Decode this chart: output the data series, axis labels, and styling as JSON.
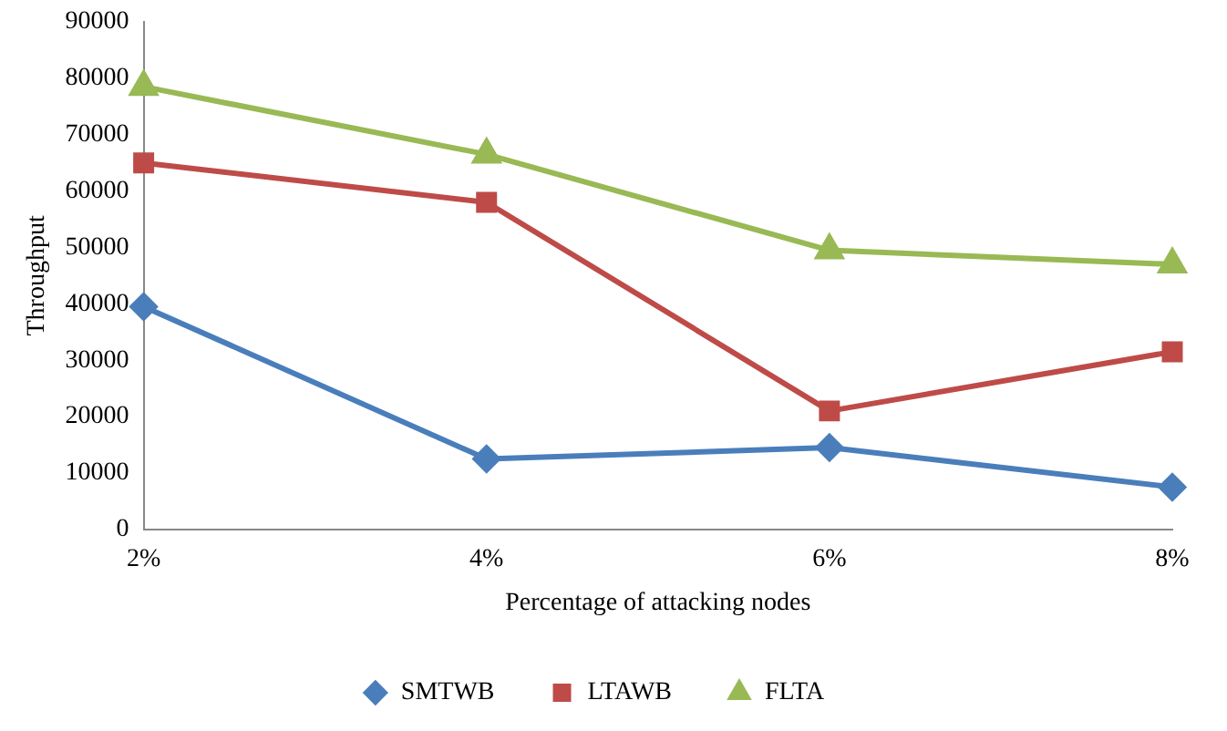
{
  "chart_data": {
    "type": "line",
    "xlabel": "Percentage of attacking nodes",
    "ylabel": "Throughput",
    "categories": [
      "2%",
      "4%",
      "6%",
      "8%"
    ],
    "series": [
      {
        "name": "SMTWB",
        "color": "#4a7ebb",
        "marker": "diamond",
        "values": [
          39500,
          12500,
          14500,
          7500
        ]
      },
      {
        "name": "LTAWB",
        "color": "#be4b48",
        "marker": "square",
        "values": [
          65000,
          58000,
          21000,
          31500
        ]
      },
      {
        "name": "FLTA",
        "color": "#98b954",
        "marker": "triangle",
        "values": [
          78500,
          66500,
          49500,
          47000
        ]
      }
    ],
    "ylim": [
      0,
      90000
    ],
    "yticks": [
      0,
      10000,
      20000,
      30000,
      40000,
      50000,
      60000,
      70000,
      80000,
      90000
    ],
    "grid": false,
    "legend": "bottom",
    "line_style": "solid"
  }
}
